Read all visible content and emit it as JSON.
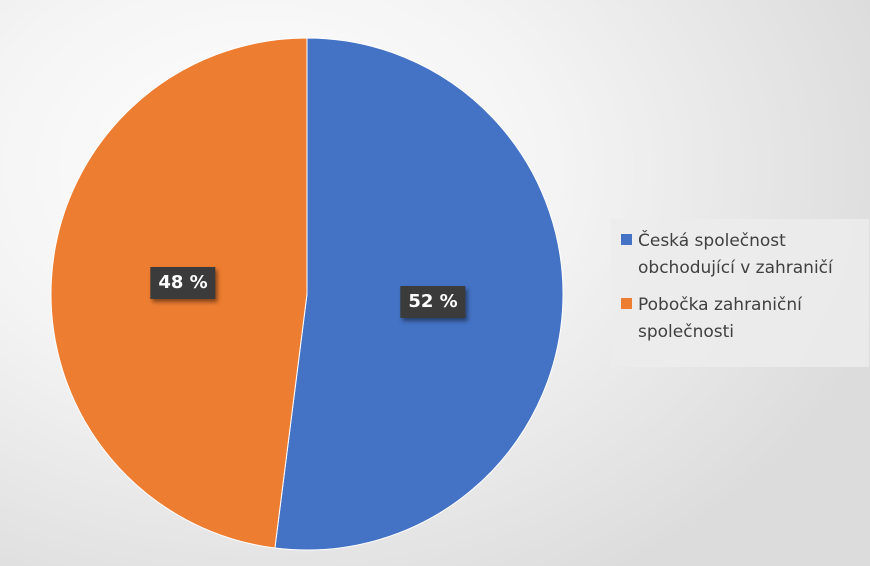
{
  "chart_data": {
    "type": "pie",
    "slices": [
      {
        "label": "Česká společnost obchodující v zahraničí",
        "value": 52,
        "display": "52 %",
        "color": "#4472c4"
      },
      {
        "label": "Pobočka zahraniční společnosti",
        "value": 48,
        "display": "48 %",
        "color": "#ed7d31"
      }
    ],
    "legend_position": "right"
  },
  "legend": {
    "item_0": "Česká společnost obchodující v zahraničí",
    "item_1": "Pobočka zahraniční společnosti"
  },
  "labels": {
    "slice_0": "52 %",
    "slice_1": "48 %"
  }
}
